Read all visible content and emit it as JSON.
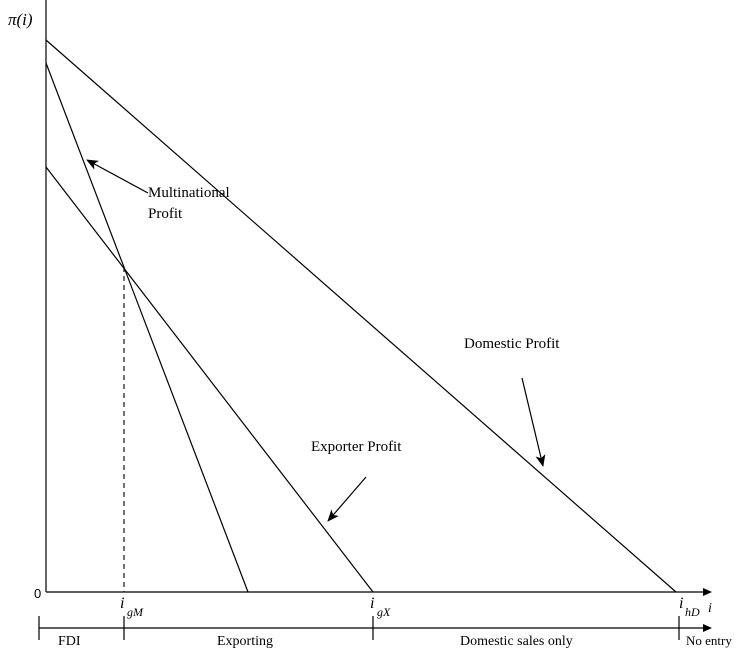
{
  "axes": {
    "y_label": "π(i)",
    "origin_label": "0",
    "x_label": "i"
  },
  "curves": {
    "domestic_label": "Domestic Profit",
    "exporter_label": "Exporter Profit",
    "multinational_label_line1": "Multinational",
    "multinational_label_line2": "Profit"
  },
  "thresholds": {
    "i_gM": {
      "main": "i",
      "sub": "gM"
    },
    "i_gX": {
      "main": "i",
      "sub": "gX"
    },
    "i_hD": {
      "main": "i",
      "sub": "hD"
    }
  },
  "regions": {
    "fdi": "FDI",
    "exporting": "Exporting",
    "domestic_only": "Domestic sales only",
    "no_entry": "No entry"
  }
}
